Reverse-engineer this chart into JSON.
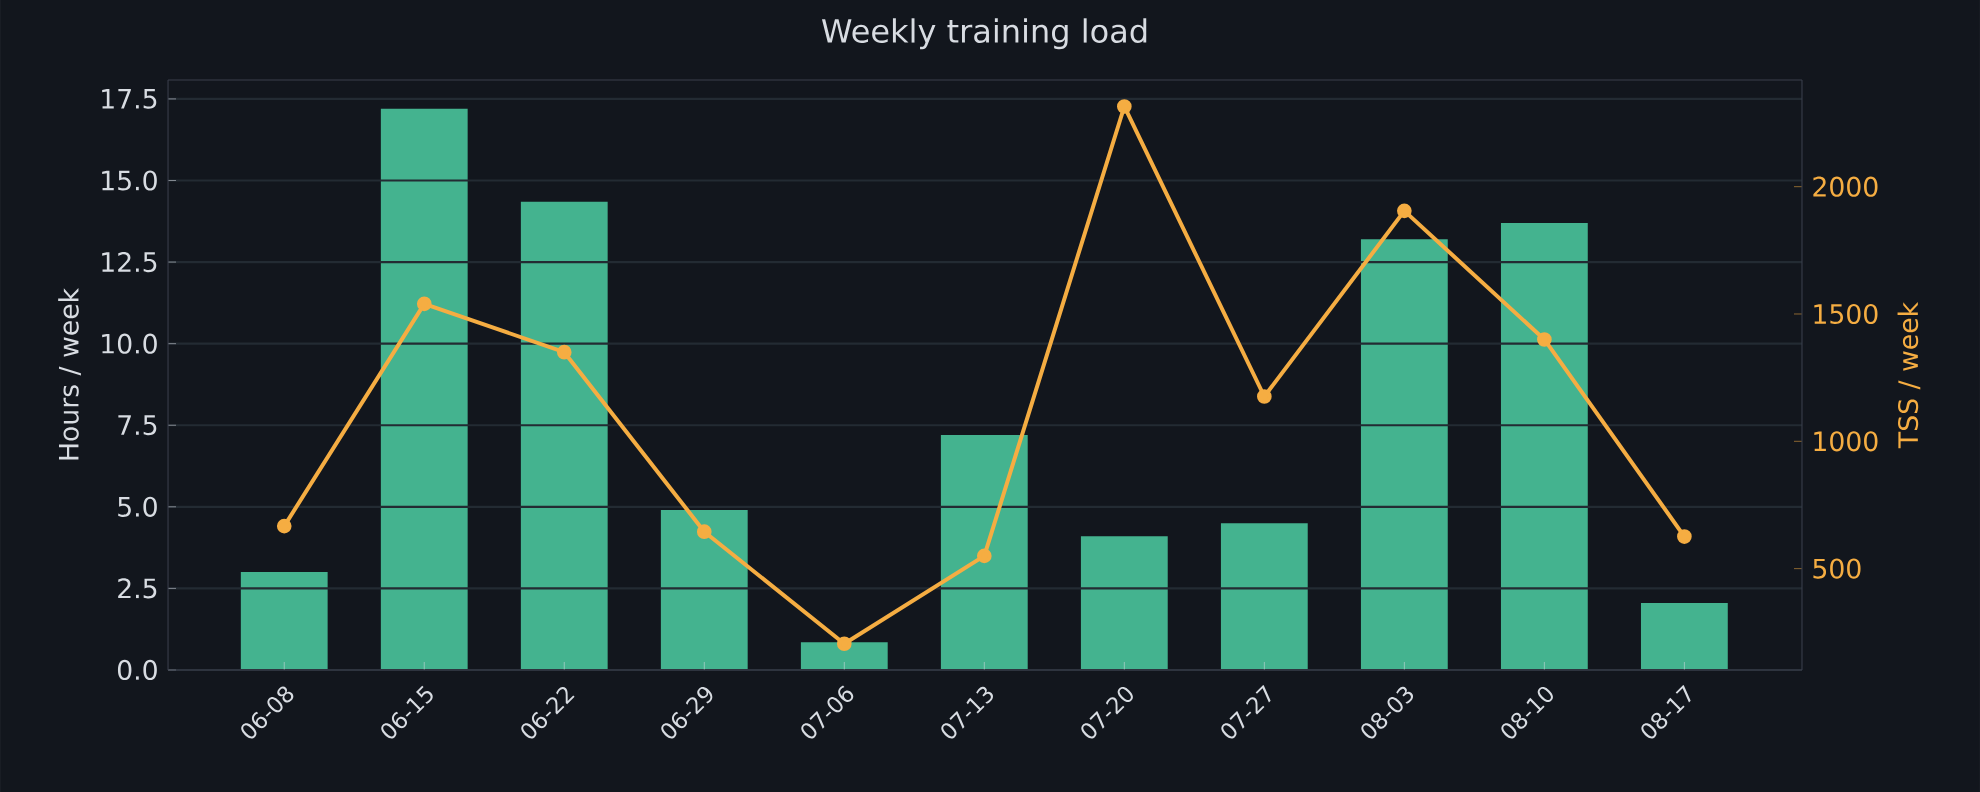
{
  "chart_data": {
    "type": "bar",
    "title": "Weekly training load",
    "ylabel": "Hours / week",
    "y2label": "TSS / week",
    "categories": [
      "06-08",
      "06-15",
      "06-22",
      "06-29",
      "07-06",
      "07-13",
      "07-20",
      "07-27",
      "08-03",
      "08-10",
      "08-17"
    ],
    "series": [
      {
        "color": "#44b38f",
        "values": [
          3.0,
          17.2,
          14.35,
          4.9,
          0.85,
          7.2,
          4.1,
          4.5,
          13.2,
          13.7,
          2.05
        ]
      },
      {
        "type": "line",
        "axis": "y2",
        "color": "#f5ad42",
        "marker": "circle",
        "values": [
          667,
          1540,
          1350,
          645,
          205,
          550,
          2315,
          1176,
          1905,
          1400,
          626
        ]
      }
    ],
    "ylim": [
      0,
      18.08
    ],
    "yticks": [
      {
        "value": 0,
        "label": "0.0"
      },
      {
        "value": 2.5,
        "label": "2.5"
      },
      {
        "value": 5,
        "label": "5.0"
      },
      {
        "value": 7.5,
        "label": "7.5"
      },
      {
        "value": 10,
        "label": "10.0"
      },
      {
        "value": 12.5,
        "label": "12.5"
      },
      {
        "value": 15,
        "label": "15.0"
      },
      {
        "value": 17.5,
        "label": "17.5"
      }
    ],
    "y2lim": [
      102,
      2419
    ],
    "y2ticks": [
      500,
      1000,
      1500,
      2000
    ],
    "grid": "y"
  }
}
